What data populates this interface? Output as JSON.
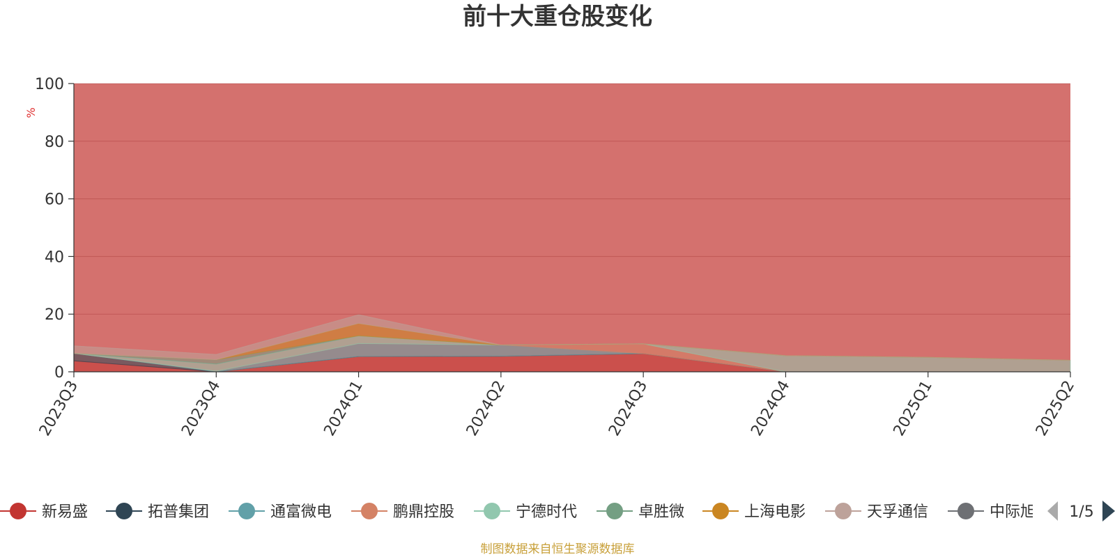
{
  "chart_data": {
    "type": "area",
    "title": "前十大重仓股变化",
    "ylabel": "%",
    "ylim": [
      0,
      100
    ],
    "yticks": [
      0,
      20,
      40,
      60,
      80,
      100
    ],
    "x": [
      "2023Q3",
      "2023Q4",
      "2024Q1",
      "2024Q2",
      "2024Q3",
      "2024Q4",
      "2025Q1",
      "2025Q2"
    ],
    "legend_position": "bottom",
    "legend_page": "1/5",
    "series": [
      {
        "name": "新易盛",
        "color": "#c23531",
        "values": [
          3.8,
          0.0,
          5.3,
          5.4,
          6.3,
          0.0,
          0.0,
          0.0
        ]
      },
      {
        "name": "拓普集团",
        "color": "#2f4554",
        "values": [
          2.6,
          0.0,
          0.0,
          0.0,
          0.0,
          0.0,
          0.0,
          0.0
        ]
      },
      {
        "name": "通富微电",
        "color": "#61a0a8",
        "values": [
          0.0,
          0.2,
          4.5,
          3.9,
          0.0,
          0.0,
          0.0,
          0.0
        ]
      },
      {
        "name": "鹏鼎控股",
        "color": "#d48265",
        "values": [
          0.0,
          0.0,
          0.0,
          0.0,
          3.4,
          0.0,
          0.0,
          0.0
        ]
      },
      {
        "name": "宁德时代",
        "color": "#91c7ae",
        "values": [
          0.0,
          2.5,
          2.7,
          0.0,
          0.0,
          5.6,
          5.0,
          4.0
        ]
      },
      {
        "name": "卓胜微",
        "color": "#749f83",
        "values": [
          0.0,
          1.5,
          0.0,
          0.0,
          0.0,
          0.0,
          0.0,
          0.0
        ]
      },
      {
        "name": "上海电影",
        "color": "#ca8622",
        "values": [
          0.0,
          0.0,
          4.3,
          0.0,
          0.0,
          0.0,
          0.0,
          0.0
        ]
      },
      {
        "name": "天孚通信",
        "color": "#bda29a",
        "values": [
          2.6,
          1.8,
          3.0,
          0.0,
          0.0,
          0.0,
          0.0,
          0.0
        ]
      }
    ],
    "total": 100
  },
  "footer": {
    "source_note": "制图数据来自恒生聚源数据库"
  },
  "legend": {
    "items": [
      {
        "name": "新易盛",
        "color": "#c23531"
      },
      {
        "name": "拓普集团",
        "color": "#2f4554"
      },
      {
        "name": "通富微电",
        "color": "#61a0a8"
      },
      {
        "name": "鹏鼎控股",
        "color": "#d48265"
      },
      {
        "name": "宁德时代",
        "color": "#91c7ae"
      },
      {
        "name": "卓胜微",
        "color": "#749f83"
      },
      {
        "name": "上海电影",
        "color": "#ca8622"
      },
      {
        "name": "天孚通信",
        "color": "#bda29a"
      },
      {
        "name": "中际旭",
        "color": "#6e7074"
      }
    ],
    "page": "1/5"
  }
}
